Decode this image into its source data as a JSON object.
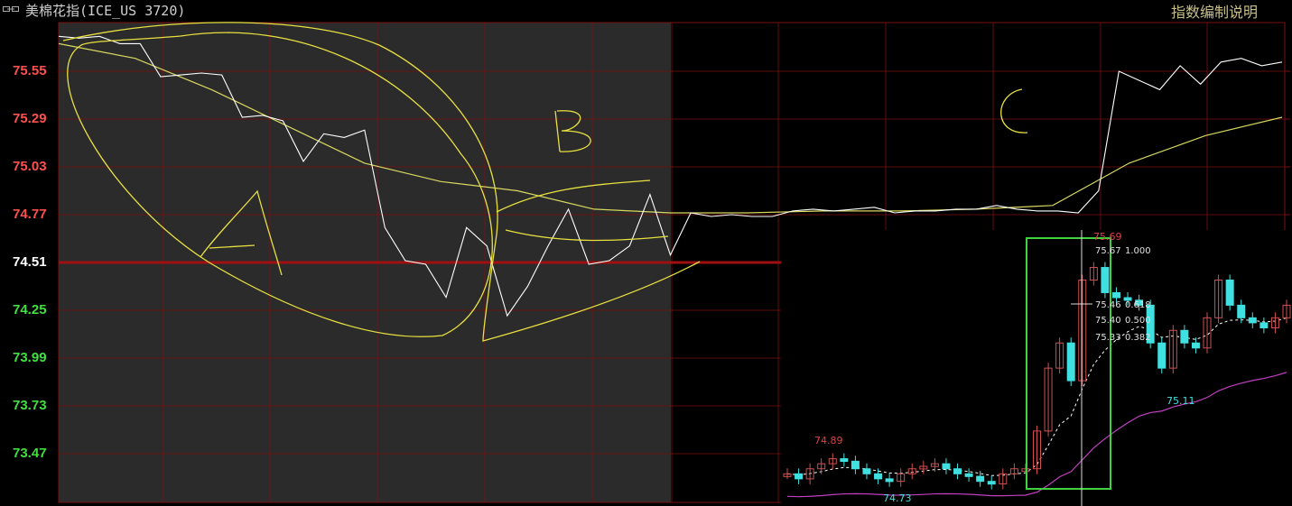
{
  "header": {
    "title": "美棉花指(ICE_US 3720)",
    "help_link": "指数编制说明",
    "link_icon": "chain-link-icon"
  },
  "colors": {
    "up": "#ff4040",
    "down": "#40e0e0",
    "neutral": "#ffffff",
    "grid": "#7a1010",
    "price_line": "#ffffff",
    "avg_line": "#d8d860",
    "annotation": "#e8e040",
    "highlight_box": "#40d040",
    "shaded_session": "#2b2b2b"
  },
  "chart_data": [
    {
      "type": "line",
      "title": "",
      "ylim": [
        73.3,
        75.8
      ],
      "reference_price": 74.51,
      "y_ticks": [
        "75.55",
        "75.29",
        "75.03",
        "74.77",
        "74.51",
        "74.25",
        "73.99",
        "73.73",
        "73.47"
      ],
      "grid": true,
      "series": [
        {
          "role": "price",
          "values": [
            75.74,
            75.73,
            75.74,
            75.7,
            75.7,
            75.52,
            75.53,
            75.54,
            75.53,
            75.3,
            75.31,
            75.28,
            75.06,
            75.21,
            75.19,
            75.23,
            74.7,
            74.52,
            74.5,
            74.32,
            74.7,
            74.6,
            74.22,
            74.38,
            74.6,
            74.8,
            74.5,
            74.52,
            74.6,
            74.88,
            74.55,
            74.78,
            74.76,
            74.77,
            74.76,
            74.76,
            74.79,
            74.8,
            74.79,
            74.8,
            74.81,
            74.78,
            74.79,
            74.79,
            74.8,
            74.8,
            74.82,
            74.8,
            74.79,
            74.79,
            74.78,
            74.9,
            75.55,
            75.5,
            75.45,
            75.58,
            75.48,
            75.6,
            75.62,
            75.58,
            75.6
          ]
        },
        {
          "role": "average",
          "values": [
            75.7,
            75.62,
            75.45,
            75.25,
            75.05,
            74.95,
            74.9,
            74.8,
            74.78,
            74.78,
            74.79,
            74.79,
            74.8,
            74.82,
            75.05,
            75.2,
            75.3
          ]
        }
      ],
      "annotations": [
        "A",
        "B",
        "C"
      ]
    },
    {
      "type": "candlestick",
      "closes": [
        74.78,
        74.76,
        74.8,
        74.82,
        74.84,
        74.83,
        74.8,
        74.78,
        74.76,
        74.75,
        74.78,
        74.8,
        74.81,
        74.82,
        74.8,
        74.78,
        74.77,
        74.75,
        74.74,
        74.78,
        74.8,
        74.8,
        74.95,
        75.2,
        75.3,
        75.15,
        75.55,
        75.6,
        75.5,
        75.48,
        75.47,
        75.45,
        75.3,
        75.2,
        75.35,
        75.3,
        75.28,
        75.4,
        75.55,
        75.45,
        75.4,
        75.38,
        75.36,
        75.4,
        75.45
      ],
      "labels": [
        {
          "text": "74.89",
          "kind": "high"
        },
        {
          "text": "74.73",
          "kind": "low"
        },
        {
          "text": "75.69",
          "kind": "high"
        },
        {
          "text": "75.11",
          "kind": "low"
        }
      ],
      "fib_levels": [
        {
          "price": "75.67",
          "ratio": "1.000"
        },
        {
          "price": "75.46",
          "ratio": "0.618"
        },
        {
          "price": "75.40",
          "ratio": "0.500"
        },
        {
          "price": "75.33",
          "ratio": "0.382"
        }
      ]
    }
  ]
}
